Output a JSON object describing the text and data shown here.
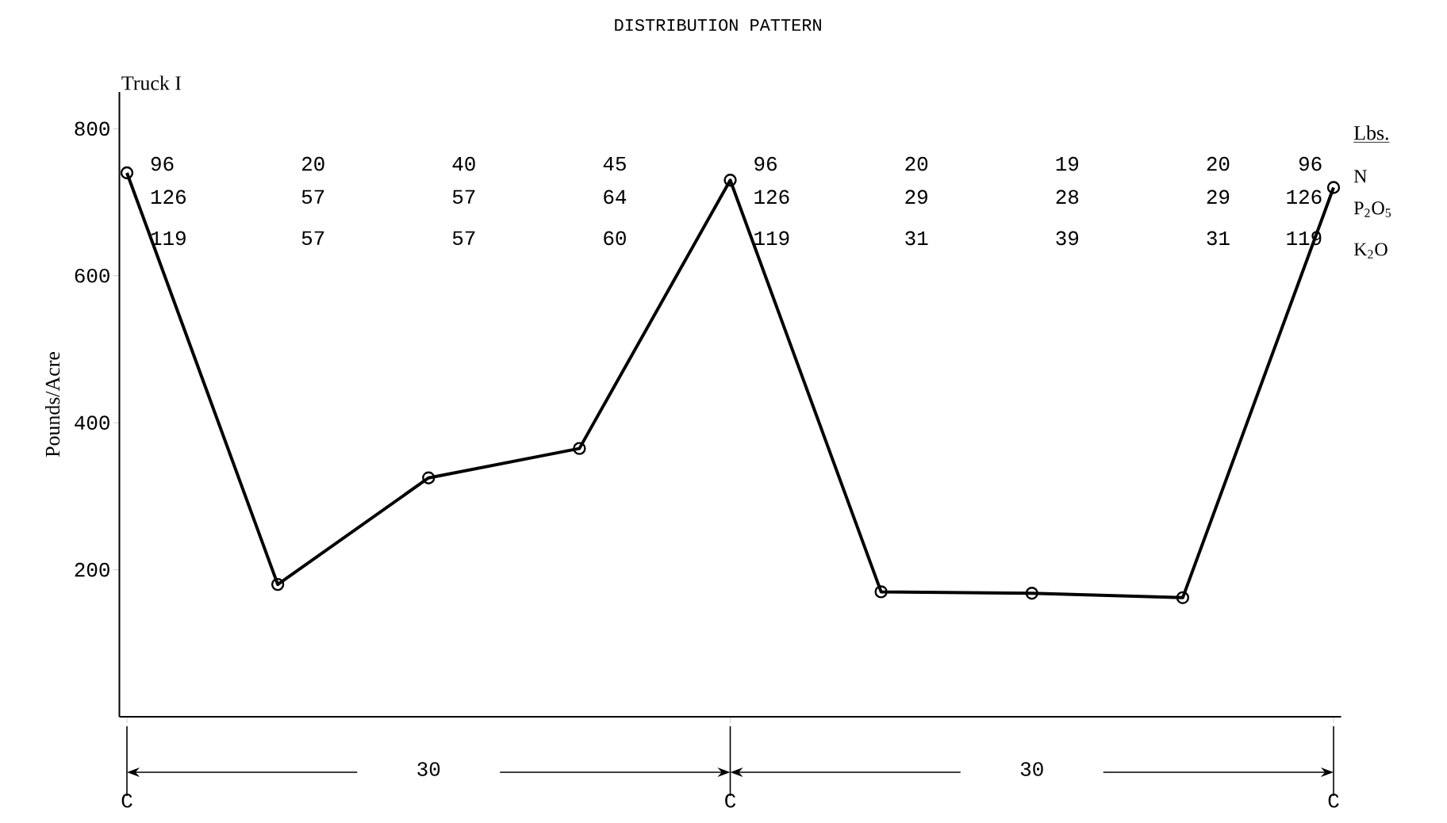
{
  "chart_data": {
    "type": "line",
    "title": "DISTRIBUTION PATTERN",
    "ylabel": "Pounds/Acre",
    "categories": [
      "C",
      null,
      null,
      null,
      "C",
      null,
      null,
      null,
      "C"
    ],
    "series": [
      {
        "color": "#000000",
        "values": [
          740,
          180,
          325,
          365,
          730,
          170,
          168,
          162,
          720
        ]
      }
    ],
    "ylim": [
      0,
      850
    ],
    "yticks": [
      200,
      400,
      600,
      800
    ],
    "grid": false,
    "legend": false,
    "marker": "circle",
    "line_style": "solid",
    "annotations": [
      "Truck I",
      "Lbs.",
      "N",
      "P$_{2}$O$_{5}$",
      "K$_{2}$O",
      "30",
      "30",
      "96",
      "126",
      "119",
      "20",
      "57",
      "57",
      "40",
      "57",
      "57",
      "45",
      "64",
      "60",
      "96",
      "126",
      "119",
      "20",
      "29",
      "31",
      "19",
      "28",
      "39",
      "20",
      "29",
      "31",
      "96",
      "126",
      "119"
    ]
  }
}
